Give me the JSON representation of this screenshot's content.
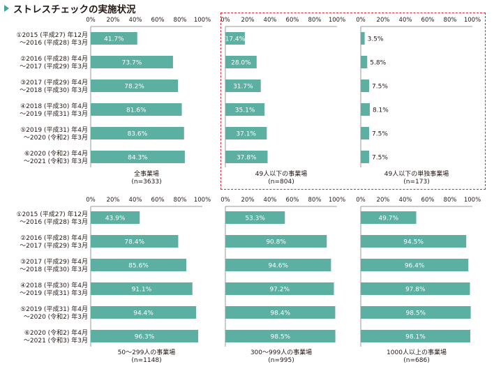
{
  "page_title": "ストレスチェックの実施状況",
  "colors": {
    "bar": "#5bb0a1",
    "axis": "#9a9a9a",
    "accent": "#3fa796",
    "dash": "#d9262c"
  },
  "chart_data": {
    "type": "bar",
    "orientation": "horizontal",
    "xlim": [
      0,
      100
    ],
    "tick_labels": [
      "0%",
      "20%",
      "40%",
      "60%",
      "80%",
      "100%"
    ],
    "categories": [
      {
        "line1": "①2015 (平成27) 年12月",
        "line2": "～2016 (平成28) 年3月"
      },
      {
        "line1": "②2016 (平成28) 年4月",
        "line2": "～2017 (平成29) 年3月"
      },
      {
        "line1": "③2017 (平成29) 年4月",
        "line2": "～2018 (平成30) 年3月"
      },
      {
        "line1": "④2018 (平成30) 年4月",
        "line2": "～2019 (平成31) 年3月"
      },
      {
        "line1": "⑤2019 (平成31) 年4月",
        "line2": "～2020 (令和2) 年3月"
      },
      {
        "line1": "⑥2020 (令和2) 年4月",
        "line2": "～2021 (令和3) 年3月"
      }
    ],
    "panels": [
      {
        "name": "全事業場",
        "n": "(n=3633)",
        "values": [
          41.7,
          73.7,
          78.2,
          81.6,
          83.6,
          84.3
        ],
        "labels": [
          "41.7%",
          "73.7%",
          "78.2%",
          "81.6%",
          "83.6%",
          "84.3%"
        ],
        "label_position": "inside"
      },
      {
        "name": "49人以下の事業場",
        "n": "(n=804)",
        "values": [
          17.4,
          28.0,
          31.7,
          35.1,
          37.1,
          37.8
        ],
        "labels": [
          "17.4%",
          "28.0%",
          "31.7%",
          "35.1%",
          "37.1%",
          "37.8%"
        ],
        "label_position": "inside"
      },
      {
        "name": "49人以下の単独事業場",
        "n": "(n=173)",
        "values": [
          3.5,
          5.8,
          7.5,
          8.1,
          7.5,
          7.5
        ],
        "labels": [
          "3.5%",
          "5.8%",
          "7.5%",
          "8.1%",
          "7.5%",
          "7.5%"
        ],
        "label_position": "outside"
      },
      {
        "name": "50～299人の事業場",
        "n": "(n=1148)",
        "values": [
          43.9,
          78.4,
          85.6,
          91.1,
          94.4,
          96.3
        ],
        "labels": [
          "43.9%",
          "78.4%",
          "85.6%",
          "91.1%",
          "94.4%",
          "96.3%"
        ],
        "label_position": "inside"
      },
      {
        "name": "300～999人の事業場",
        "n": "(n=995)",
        "values": [
          53.3,
          90.8,
          94.6,
          97.2,
          98.4,
          98.5
        ],
        "labels": [
          "53.3%",
          "90.8%",
          "94.6%",
          "97.2%",
          "98.4%",
          "98.5%"
        ],
        "label_position": "inside"
      },
      {
        "name": "1000人以上の事業場",
        "n": "(n=686)",
        "values": [
          49.7,
          94.5,
          96.4,
          97.8,
          98.5,
          98.1
        ],
        "labels": [
          "49.7%",
          "94.5%",
          "96.4%",
          "97.8%",
          "98.5%",
          "98.1%"
        ],
        "label_position": "inside"
      }
    ]
  }
}
